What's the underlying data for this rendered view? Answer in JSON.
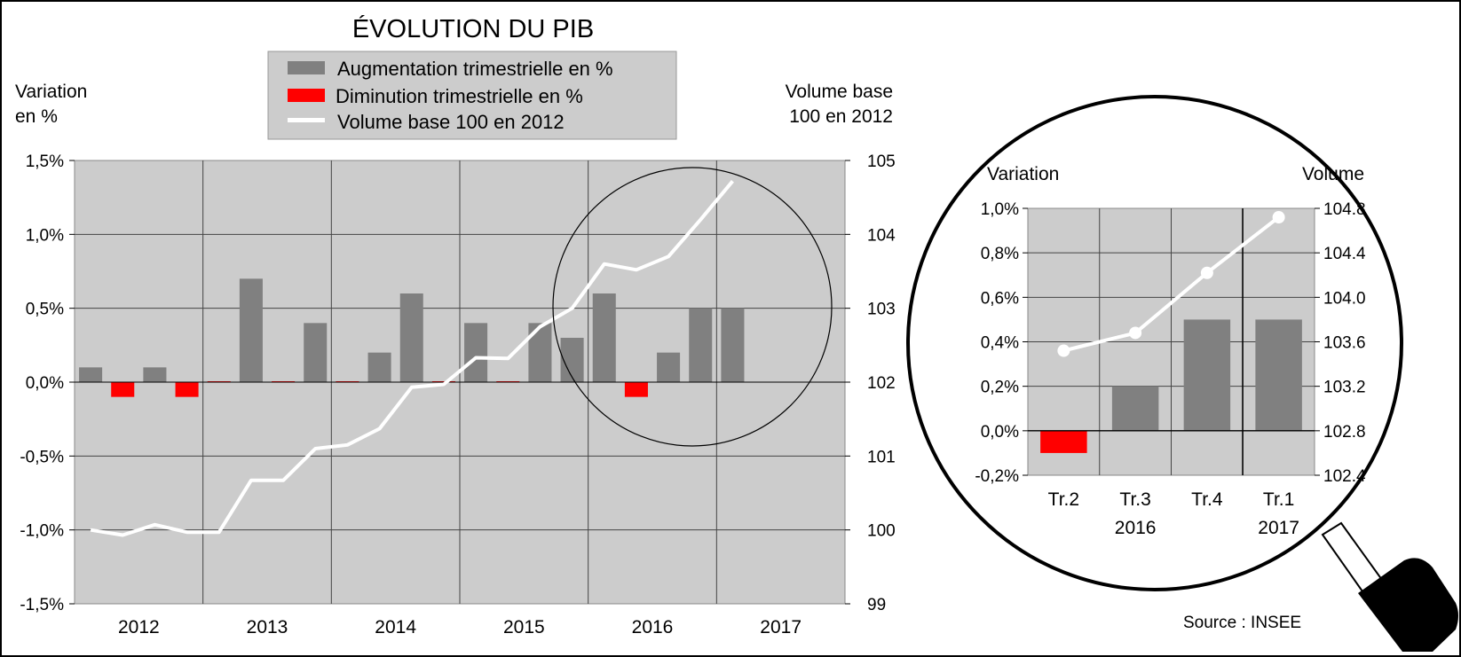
{
  "chart_data": [
    {
      "type": "bar+line",
      "title": "ÉVOLUTION DU PIB",
      "ylabel_left": [
        "Variation",
        "en %"
      ],
      "ylabel_right": [
        "Volume base",
        "100 en 2012"
      ],
      "y_left_ticks": [
        "1,5%",
        "1,0%",
        "0,5%",
        "0,0%",
        "-0,5%",
        "-1,0%",
        "-1,5%"
      ],
      "y_right_ticks": [
        "105",
        "104",
        "103",
        "102",
        "101",
        "100",
        "99"
      ],
      "ylim_left": [
        -1.5,
        1.5
      ],
      "ylim_right": [
        99,
        105
      ],
      "year_labels": [
        "2012",
        "2013",
        "2014",
        "2015",
        "2016",
        "2017"
      ],
      "quarters_per_year": 4,
      "legend": {
        "increase": "Augmentation trimestrielle en %",
        "decrease": "Diminution trimestrielle en %",
        "volume": "Volume base 100 en  2012"
      },
      "colors": {
        "increase": "#808080",
        "decrease": "#ff0000",
        "volume": "#ffffff",
        "plot_bg": "#cccccc"
      },
      "quarterly_change_pct": [
        0.1,
        -0.1,
        0.1,
        -0.1,
        0.0,
        0.7,
        0.0,
        0.4,
        0.0,
        0.2,
        0.6,
        0.0,
        0.4,
        0.0,
        0.4,
        0.3,
        0.6,
        -0.1,
        0.2,
        0.5,
        0.5
      ],
      "volume_index": [
        100.0,
        99.93,
        100.07,
        99.97,
        99.97,
        100.67,
        100.67,
        101.1,
        101.15,
        101.37,
        101.93,
        101.97,
        102.33,
        102.32,
        102.75,
        103.0,
        103.6,
        103.52,
        103.7,
        104.2,
        104.72
      ],
      "grid": true,
      "magnifier_circle": true
    },
    {
      "type": "bar+line",
      "ylabel_left": "Variation",
      "ylabel_right": "Volume",
      "y_left_ticks": [
        "1,0%",
        "0,8%",
        "0,6%",
        "0,4%",
        "0,2%",
        "0,0%",
        "-0,2%"
      ],
      "y_right_ticks": [
        "104.8",
        "104.4",
        "104.0",
        "103.6",
        "103.2",
        "102.8",
        "102.4"
      ],
      "ylim_left": [
        -0.2,
        1.0
      ],
      "ylim_right": [
        102.4,
        104.8
      ],
      "categories": [
        "Tr.2",
        "Tr.3",
        "Tr.4",
        "Tr.1"
      ],
      "category_years": [
        "",
        "2016",
        "",
        "2017"
      ],
      "quarterly_change_pct": [
        -0.1,
        0.2,
        0.5,
        0.5
      ],
      "volume_index": [
        103.52,
        103.68,
        104.22,
        104.72
      ],
      "grid": true
    }
  ],
  "source": "Source : INSEE"
}
